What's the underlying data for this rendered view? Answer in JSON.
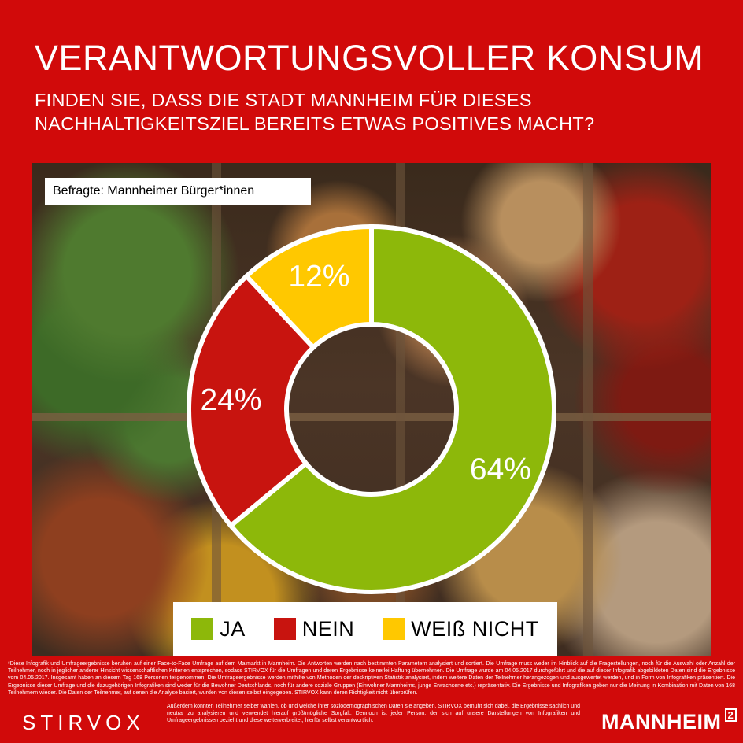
{
  "header": {
    "title": "VERANTWORTUNGSVOLLER KONSUM",
    "question_line1": "FINDEN SIE, DASS DIE STADT MANNHEIM FÜR DIESES",
    "question_line2": "NACHHALTIGKEITSZIEL BEREITS ETWAS POSITIVES MACHT?"
  },
  "respondents_label": "Befragte: Mannheimer Bürger*innen",
  "chart_data": {
    "type": "pie",
    "variant": "donut",
    "categories": [
      "JA",
      "NEIN",
      "WEIß NICHT"
    ],
    "values": [
      64,
      24,
      12
    ],
    "value_labels": [
      "64%",
      "24%",
      "12%"
    ],
    "colors": [
      "#8db80a",
      "#c8140f",
      "#ffc800"
    ],
    "legend_placement": "bottom"
  },
  "legend": {
    "items": [
      {
        "label": "JA",
        "color": "#8db80a"
      },
      {
        "label": "NEIN",
        "color": "#c8140f"
      },
      {
        "label": "WEIß NICHT",
        "color": "#ffc800"
      }
    ]
  },
  "footnote": {
    "text1": "*Diese Infografik und Umfrageergebnisse beruhen auf einer Face-to-Face Umfrage auf dem Maimarkt in Mannheim. Die Antworten werden nach bestimmten Parametern analysiert und sortiert. Die Umfrage muss weder im Hinblick auf die Fragestellungen, noch für die Auswahl oder Anzahl der Teilnehmer, noch in jeglicher anderer Hinsicht wissenschaftlichen Kriterien entsprechen, sodass STIRVOX für die Umfragen und deren Ergebnisse keinerlei Haftung übernehmen. Die Umfrage wurde am 04.05.2017 durchgeführt und die auf dieser Infografik abgebildeten Daten sind die Ergebnisse vom 04.05.2017. Insgesamt haben an diesem Tag 168 Personen teilgenommen. Die Umfrageergebnisse werden mithilfe von Methoden der deskriptiven Statistik analysiert, indem weitere Daten der Teilnehmer herangezogen und ausgewertet werden, und in Form von Infografiken präsentiert. Die Ergebnisse dieser Umfrage und die dazugehörigen Infografiken sind weder für die Bewohner Deutschlands, noch für andere soziale Gruppen (Einwohner Mannheims, junge Erwachsene etc.) repräsentativ. Die Ergebnisse und Infografiken geben nur die Meinung in Kombination mit Daten von 168 Teilnehmern wieder. Die Daten der Teilnehmer, auf denen die Analyse basiert, wurden von diesen selbst eingegeben. STIRVOX kann deren Richtigkeit nicht überprüfen.",
    "text2": "Außerdem konnten Teilnehmer selber wählen, ob und welche ihrer soziodemographischen Daten sie angeben. STIRVOX bemüht sich dabei, die Ergebnisse sachlich und neutral zu analysieren und verwendet hierauf größtmögliche Sorgfalt. Dennoch ist jeder Person, der sich auf unsere Darstellungen von Infografiken und Umfrageergebnissen bezieht und diese weiterverbreitet, hierfür selbst verantwortlich."
  },
  "logos": {
    "left": "STIRVOX",
    "right": "MANNHEIM",
    "right_superscript": "2"
  }
}
